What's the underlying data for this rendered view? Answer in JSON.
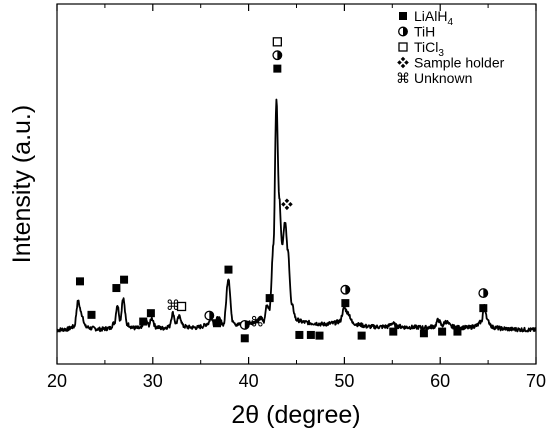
{
  "chart_data": {
    "type": "line",
    "title": "",
    "xlabel": "2θ (degree)",
    "ylabel": "Intensity (a.u.)",
    "xlim": [
      20,
      70
    ],
    "x_ticks": [
      20,
      30,
      40,
      50,
      60,
      70
    ],
    "y_ticks": [],
    "grid": false,
    "legend_position": "top-right",
    "legend": [
      {
        "marker": "filled-square",
        "label": "LiAlH",
        "subscript": "4"
      },
      {
        "marker": "half-filled-circle",
        "label": "TiH",
        "subscript": ""
      },
      {
        "marker": "open-square",
        "label": "TiCl",
        "subscript": "3"
      },
      {
        "marker": "four-diamond",
        "label": "Sample holder",
        "subscript": ""
      },
      {
        "marker": "command-symbol",
        "label": "Unknown",
        "subscript": ""
      }
    ],
    "series": [
      {
        "name": "",
        "color": "#000000",
        "x": [
          20.0,
          21.0,
          21.8,
          22.2,
          22.6,
          23.0,
          23.6,
          24.5,
          25.5,
          26.0,
          26.3,
          26.6,
          26.9,
          27.3,
          28.0,
          28.8,
          29.2,
          29.6,
          29.9,
          30.3,
          31.0,
          31.7,
          32.1,
          32.4,
          32.8,
          33.2,
          33.8,
          34.6,
          35.2,
          35.8,
          36.1,
          36.4,
          36.8,
          37.4,
          37.9,
          38.3,
          38.8,
          39.5,
          40.2,
          40.8,
          41.3,
          41.6,
          41.9,
          42.2,
          42.6,
          42.9,
          43.2,
          43.5,
          43.8,
          44.1,
          44.5,
          45.0,
          45.8,
          46.8,
          47.8,
          48.8,
          49.5,
          50.0,
          50.4,
          50.9,
          51.6,
          52.5,
          53.5,
          54.5,
          55.0,
          55.5,
          56.5,
          57.5,
          58.5,
          59.4,
          59.8,
          60.2,
          60.6,
          61.2,
          62.0,
          63.0,
          63.8,
          64.3,
          64.6,
          65.0,
          65.5,
          66.5,
          67.5,
          68.5,
          69.5,
          70.0
        ],
        "values": [
          4.5,
          4.7,
          5.5,
          13.0,
          9.0,
          5.4,
          5.0,
          4.7,
          5.0,
          6.6,
          12.0,
          7.5,
          14.0,
          6.2,
          5.1,
          5.0,
          7.5,
          6.0,
          8.0,
          5.4,
          5.0,
          5.5,
          9.5,
          6.5,
          8.5,
          5.6,
          5.3,
          5.2,
          5.6,
          6.5,
          8.5,
          6.3,
          8.0,
          6.2,
          20.0,
          7.5,
          6.0,
          6.5,
          6.8,
          7.0,
          8.0,
          7.0,
          12.0,
          11.0,
          30.0,
          73.0,
          44.0,
          30.0,
          37.0,
          28.0,
          12.0,
          7.5,
          6.8,
          6.5,
          6.2,
          6.5,
          7.0,
          11.0,
          9.5,
          6.5,
          6.0,
          5.5,
          5.4,
          5.5,
          6.5,
          5.6,
          5.3,
          5.3,
          5.2,
          5.5,
          7.5,
          5.8,
          7.0,
          5.5,
          5.2,
          5.2,
          5.8,
          7.0,
          11.5,
          7.0,
          5.3,
          4.9,
          4.7,
          4.6,
          4.5,
          4.5
        ]
      }
    ],
    "peak_markers": [
      {
        "x": 22.4,
        "level": 19.0,
        "symbol": "filled-square"
      },
      {
        "x": 23.6,
        "level": 9.0,
        "symbol": "filled-square"
      },
      {
        "x": 26.2,
        "level": 17.0,
        "symbol": "filled-square"
      },
      {
        "x": 27.0,
        "level": 19.5,
        "symbol": "filled-square"
      },
      {
        "x": 29.0,
        "level": 7.0,
        "symbol": "filled-square"
      },
      {
        "x": 29.8,
        "level": 9.5,
        "symbol": "filled-square"
      },
      {
        "x": 32.1,
        "level": 12.0,
        "symbol": "command-symbol"
      },
      {
        "x": 33.0,
        "level": 11.5,
        "symbol": "open-square"
      },
      {
        "x": 35.9,
        "level": 8.8,
        "symbol": "half-filled-circle"
      },
      {
        "x": 36.7,
        "level": 6.5,
        "symbol": "filled-square"
      },
      {
        "x": 37.9,
        "level": 22.5,
        "symbol": "filled-square"
      },
      {
        "x": 39.6,
        "level": 6.0,
        "symbol": "half-filled-circle"
      },
      {
        "x": 39.6,
        "level": 2.0,
        "symbol": "filled-square"
      },
      {
        "x": 40.9,
        "level": 7.0,
        "symbol": "command-symbol"
      },
      {
        "x": 42.2,
        "level": 14.0,
        "symbol": "filled-square"
      },
      {
        "x": 43.0,
        "level": 90.5,
        "symbol": "open-square"
      },
      {
        "x": 43.0,
        "level": 86.5,
        "symbol": "half-filled-circle"
      },
      {
        "x": 43.0,
        "level": 82.5,
        "symbol": "filled-square"
      },
      {
        "x": 44.0,
        "level": 42.0,
        "symbol": "four-diamond"
      },
      {
        "x": 45.3,
        "level": 3.0,
        "symbol": "filled-square"
      },
      {
        "x": 46.5,
        "level": 3.0,
        "symbol": "filled-square"
      },
      {
        "x": 47.4,
        "level": 2.8,
        "symbol": "filled-square"
      },
      {
        "x": 50.1,
        "level": 16.5,
        "symbol": "half-filled-circle"
      },
      {
        "x": 50.1,
        "level": 12.5,
        "symbol": "filled-square"
      },
      {
        "x": 51.8,
        "level": 2.8,
        "symbol": "filled-square"
      },
      {
        "x": 55.1,
        "level": 4.0,
        "symbol": "filled-square"
      },
      {
        "x": 58.3,
        "level": 3.5,
        "symbol": "filled-square"
      },
      {
        "x": 60.2,
        "level": 4.0,
        "symbol": "filled-square"
      },
      {
        "x": 61.8,
        "level": 4.0,
        "symbol": "filled-square"
      },
      {
        "x": 64.5,
        "level": 15.5,
        "symbol": "half-filled-circle"
      },
      {
        "x": 64.5,
        "level": 11.0,
        "symbol": "filled-square"
      }
    ]
  }
}
